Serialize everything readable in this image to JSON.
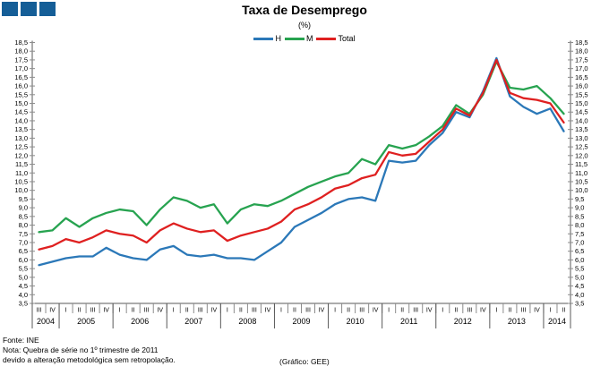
{
  "logo": {
    "color": "#155e97",
    "square_count": 3
  },
  "header": {
    "title": "Taxa de Desemprego",
    "subtitle": "(%)"
  },
  "legend": [
    {
      "label": "H",
      "color": "#2b78b8"
    },
    {
      "label": "M",
      "color": "#27a350"
    },
    {
      "label": "Total",
      "color": "#df2020"
    }
  ],
  "footer": {
    "fonte": "Fonte: INE",
    "nota1": "Nota: Quebra de série no 1º trimestre de 2011",
    "nota2": "devido a alteração metodológica sem retropolação.",
    "credit": "(Gráfico: GEE)"
  },
  "chart_data": {
    "type": "line",
    "title": "Taxa de Desemprego",
    "subtitle": "(%)",
    "ylabel": "",
    "xlabel": "",
    "ylim": [
      3.5,
      18.5
    ],
    "ytick_step": 0.5,
    "grid": false,
    "legend_position": "top-center",
    "y_axis_sides": "both",
    "decimal_separator": ",",
    "x_quarters": [
      "III",
      "IV",
      "I",
      "II",
      "III",
      "IV",
      "I",
      "II",
      "III",
      "IV",
      "I",
      "II",
      "III",
      "IV",
      "I",
      "II",
      "III",
      "IV",
      "I",
      "II",
      "III",
      "IV",
      "I",
      "II",
      "III",
      "IV",
      "I",
      "II",
      "III",
      "IV",
      "I",
      "II",
      "III",
      "IV",
      "I",
      "II",
      "III",
      "IV",
      "I",
      "II"
    ],
    "x_years": [
      {
        "label": "2004",
        "span": 2
      },
      {
        "label": "2005",
        "span": 4
      },
      {
        "label": "2006",
        "span": 4
      },
      {
        "label": "2007",
        "span": 4
      },
      {
        "label": "2008",
        "span": 4
      },
      {
        "label": "2009",
        "span": 4
      },
      {
        "label": "2010",
        "span": 4
      },
      {
        "label": "2011",
        "span": 4
      },
      {
        "label": "2012",
        "span": 4
      },
      {
        "label": "2013",
        "span": 4
      },
      {
        "label": "2014",
        "span": 2
      }
    ],
    "series": [
      {
        "name": "H",
        "color": "#2b78b8",
        "values": [
          5.7,
          5.9,
          6.1,
          6.2,
          6.2,
          6.7,
          6.3,
          6.1,
          6.0,
          6.6,
          6.8,
          6.3,
          6.2,
          6.3,
          6.1,
          6.1,
          6.0,
          6.5,
          7.0,
          7.9,
          8.3,
          8.7,
          9.2,
          9.5,
          9.6,
          9.4,
          11.7,
          11.6,
          11.7,
          12.6,
          13.3,
          14.5,
          14.2,
          15.7,
          17.6,
          15.4,
          14.8,
          14.4,
          14.7,
          13.4
        ]
      },
      {
        "name": "M",
        "color": "#27a350",
        "values": [
          7.6,
          7.7,
          8.4,
          7.9,
          8.4,
          8.7,
          8.9,
          8.8,
          8.0,
          8.9,
          9.6,
          9.4,
          9.0,
          9.2,
          8.1,
          8.9,
          9.2,
          9.1,
          9.4,
          9.8,
          10.2,
          10.5,
          10.8,
          11.0,
          11.8,
          11.5,
          12.6,
          12.4,
          12.6,
          13.1,
          13.7,
          14.9,
          14.4,
          15.5,
          17.4,
          15.9,
          15.8,
          16.0,
          15.3,
          14.4
        ]
      },
      {
        "name": "Total",
        "color": "#df2020",
        "values": [
          6.6,
          6.8,
          7.2,
          7.0,
          7.3,
          7.7,
          7.5,
          7.4,
          7.0,
          7.7,
          8.1,
          7.8,
          7.6,
          7.7,
          7.1,
          7.4,
          7.6,
          7.8,
          8.2,
          8.9,
          9.2,
          9.6,
          10.1,
          10.3,
          10.7,
          10.9,
          12.2,
          12.0,
          12.1,
          12.8,
          13.5,
          14.7,
          14.3,
          15.6,
          17.5,
          15.6,
          15.3,
          15.2,
          15.0,
          13.9
        ]
      }
    ],
    "annotation": "Quebra de série no 1º trimestre de 2011"
  }
}
